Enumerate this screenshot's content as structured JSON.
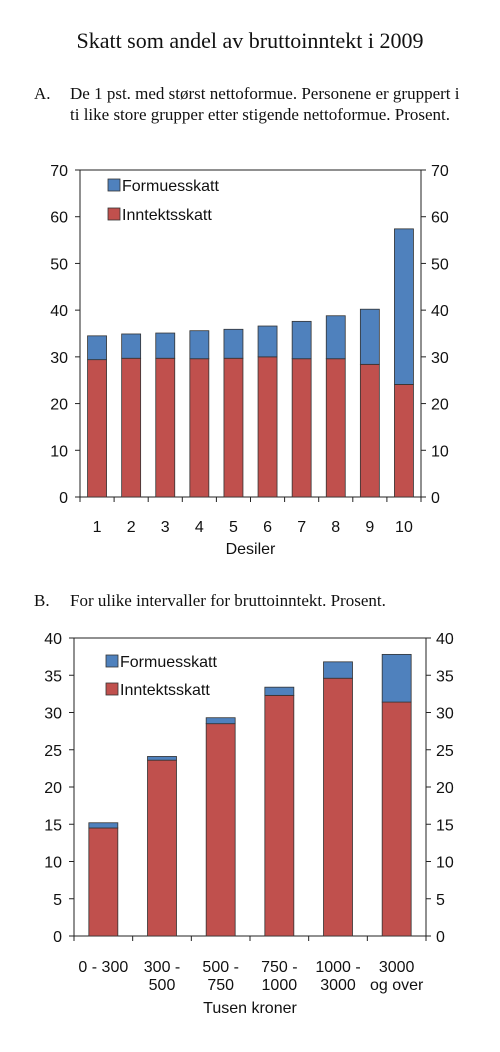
{
  "title": "Skatt som andel av bruttoinntekt i 2009",
  "panels": {
    "a": {
      "letter": "A.",
      "text": "De 1 pst. med størst nettoformue. Personene er gruppert i ti like store grupper etter stigende nettoformue. Prosent."
    },
    "b": {
      "letter": "B.",
      "text": "For ulike intervaller for bruttoinntekt. Prosent."
    }
  },
  "colors": {
    "inntektsskatt": "#c0504d",
    "formuesskatt": "#4f81bd"
  },
  "chart_data": [
    {
      "type": "bar",
      "stacked": true,
      "categories": [
        "1",
        "2",
        "3",
        "4",
        "5",
        "6",
        "7",
        "8",
        "9",
        "10"
      ],
      "category_lines": [
        [
          "1"
        ],
        [
          "2"
        ],
        [
          "3"
        ],
        [
          "4"
        ],
        [
          "5"
        ],
        [
          "6"
        ],
        [
          "7"
        ],
        [
          "8"
        ],
        [
          "9"
        ],
        [
          "10"
        ]
      ],
      "series": [
        {
          "name": "Inntektsskatt",
          "values": [
            29.4,
            29.7,
            29.7,
            29.6,
            29.7,
            30.0,
            29.6,
            29.6,
            28.4,
            24.1
          ]
        },
        {
          "name": "Formuesskatt",
          "values": [
            5.1,
            5.2,
            5.4,
            6.0,
            6.2,
            6.6,
            8.0,
            9.2,
            11.8,
            33.3
          ]
        }
      ],
      "legend_order": [
        "Formuesskatt",
        "Inntektsskatt"
      ],
      "xlabel": "Desiler",
      "ylabel": "",
      "ylim": [
        0,
        70
      ],
      "yticks": [
        0,
        10,
        20,
        30,
        40,
        50,
        60,
        70
      ],
      "y_axis_both_sides": true,
      "grid": false,
      "legend_position": "top-left"
    },
    {
      "type": "bar",
      "stacked": true,
      "categories": [
        "0 - 300",
        "300 - 500",
        "500 - 750",
        "750 - 1000",
        "1000 - 3000",
        "3000 og over"
      ],
      "category_lines": [
        [
          "0 - 300"
        ],
        [
          "300 -",
          "500"
        ],
        [
          "500 -",
          "750"
        ],
        [
          "750 -",
          "1000"
        ],
        [
          "1000 -",
          "3000"
        ],
        [
          "3000",
          "og over"
        ]
      ],
      "series": [
        {
          "name": "Inntektsskatt",
          "values": [
            14.5,
            23.6,
            28.5,
            32.3,
            34.6,
            31.4
          ]
        },
        {
          "name": "Formuesskatt",
          "values": [
            0.7,
            0.5,
            0.8,
            1.1,
            2.2,
            6.4
          ]
        }
      ],
      "legend_order": [
        "Formuesskatt",
        "Inntektsskatt"
      ],
      "xlabel": "Tusen kroner",
      "ylabel": "",
      "ylim": [
        0,
        40
      ],
      "yticks": [
        0,
        5,
        10,
        15,
        20,
        25,
        30,
        35,
        40
      ],
      "y_axis_both_sides": true,
      "grid": false,
      "legend_position": "top-left"
    }
  ]
}
